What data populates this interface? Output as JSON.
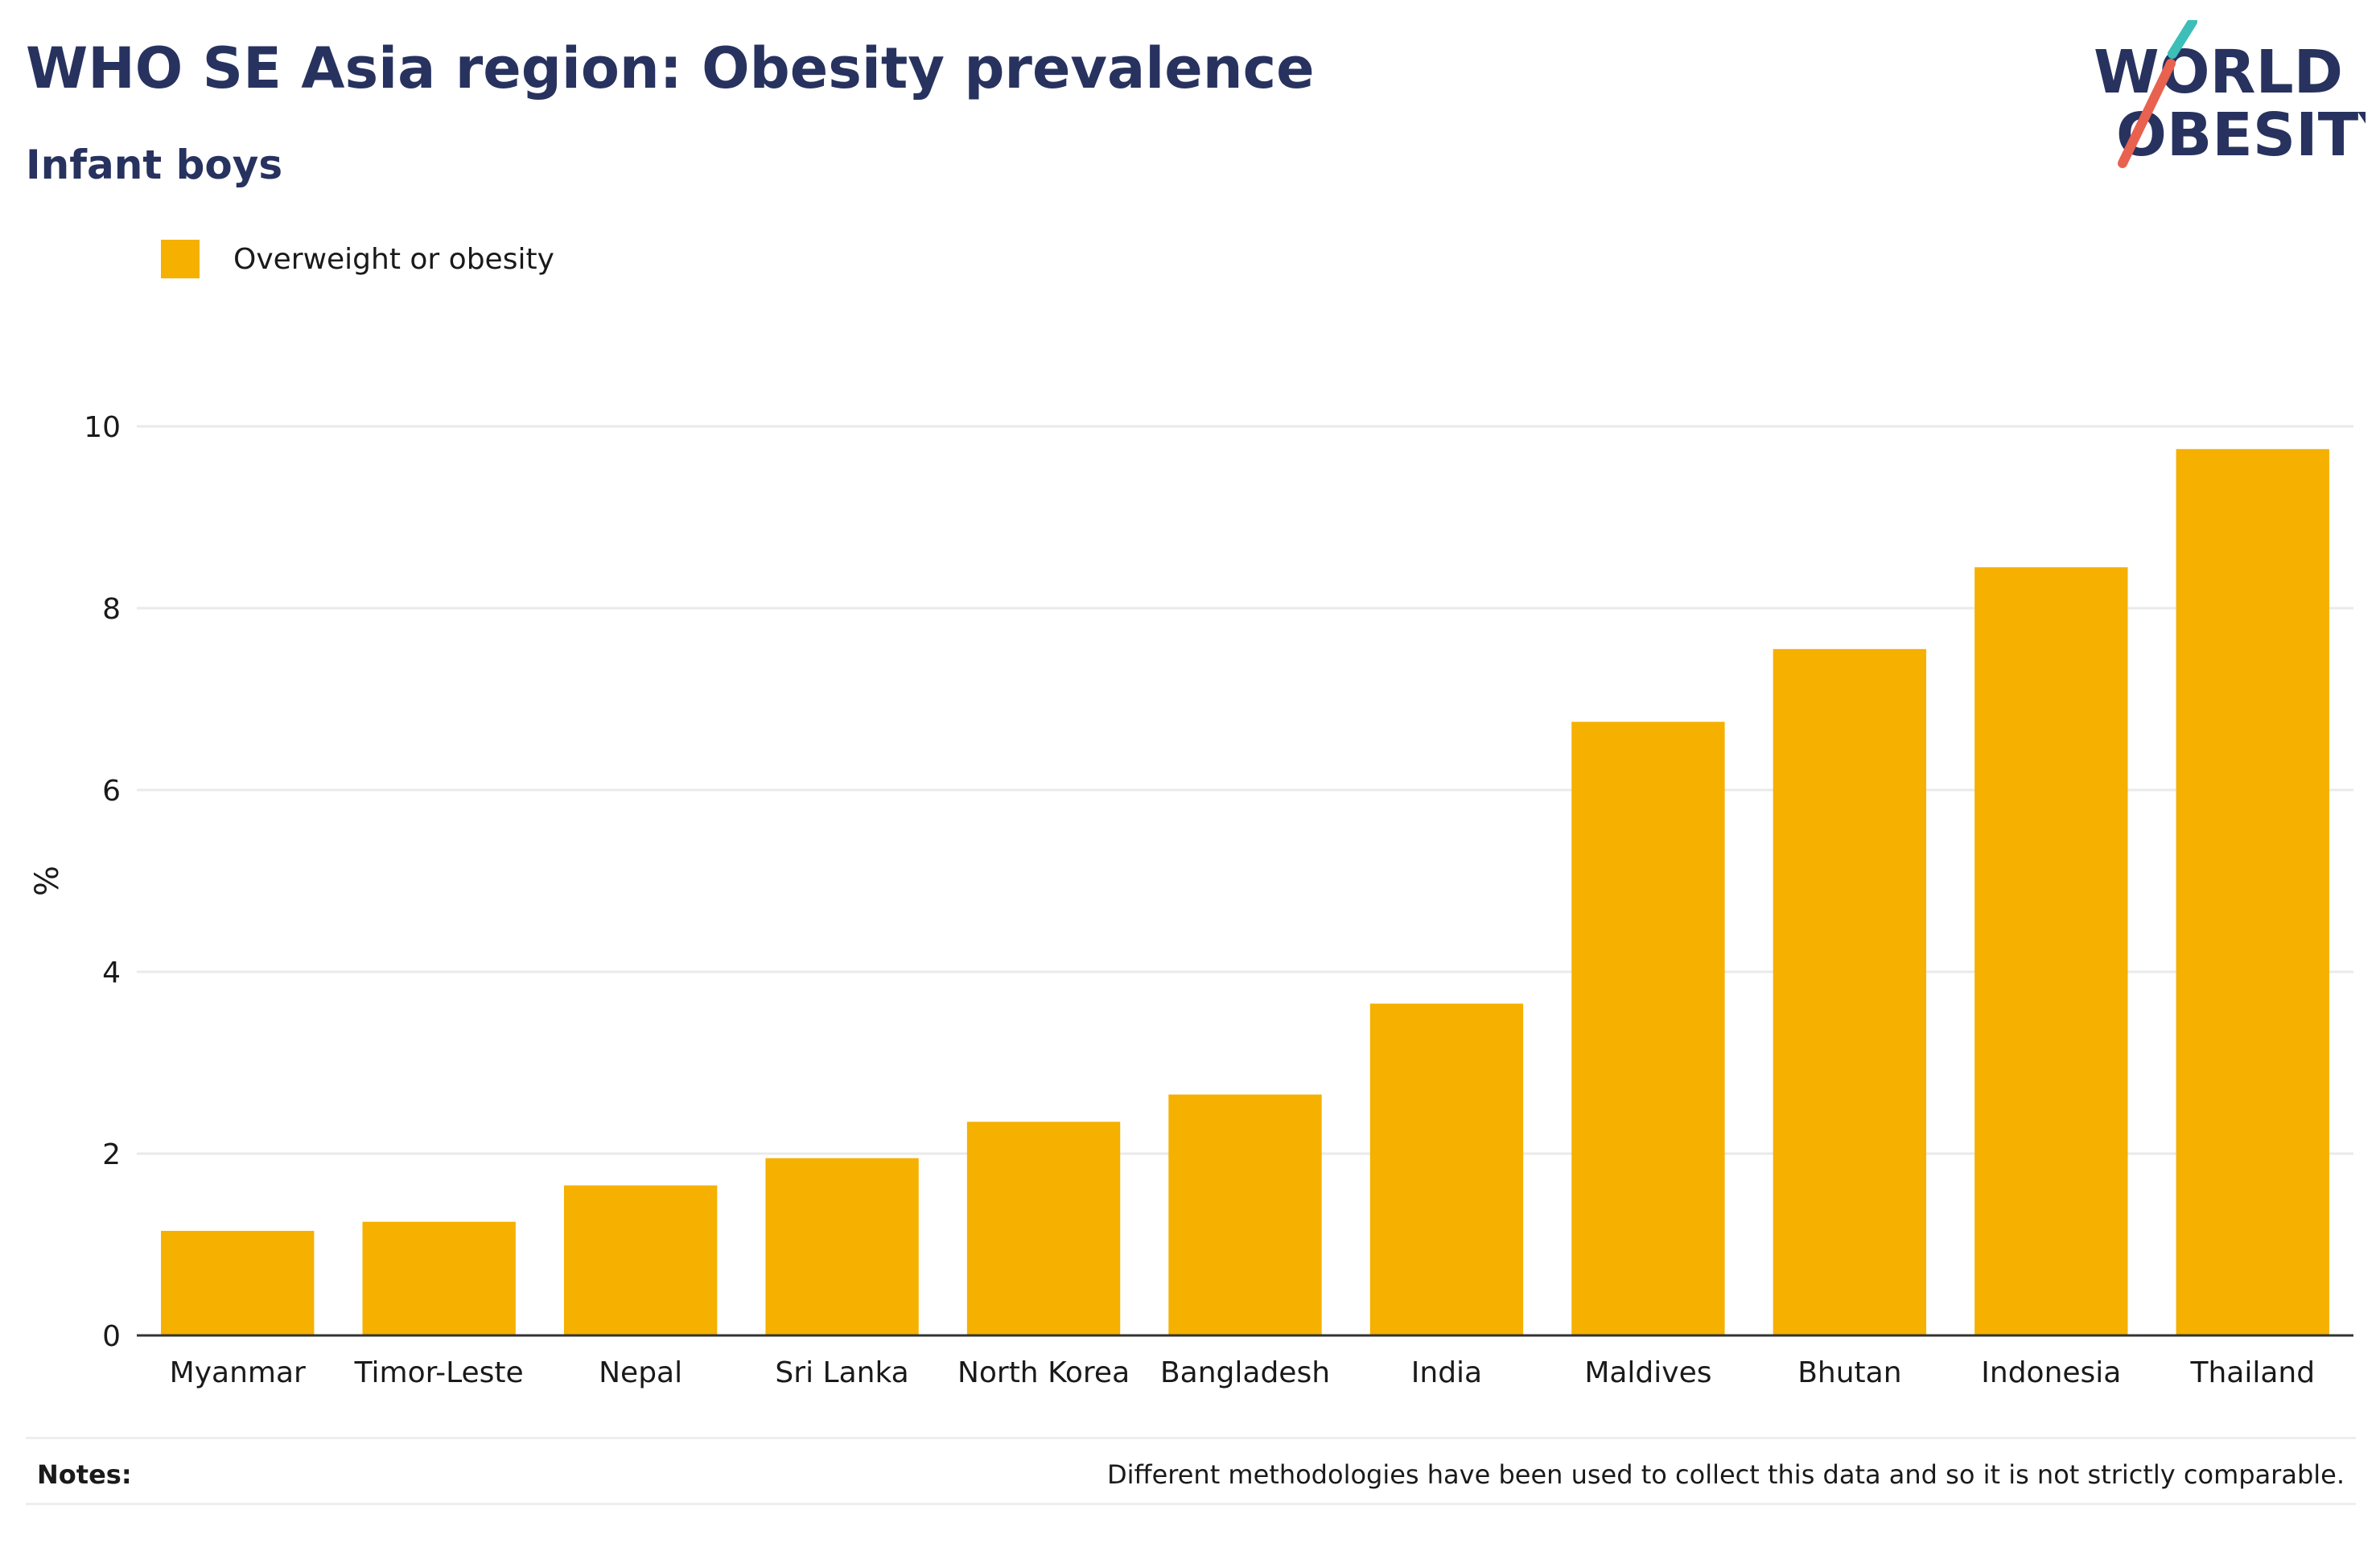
{
  "title": "WHO SE Asia region: Obesity prevalence",
  "subtitle": "Infant boys",
  "logo": {
    "line1": "WORLD",
    "line2": "OBESITY",
    "text_color": "#27325f",
    "accent_teal": "#3bbfb8",
    "accent_red": "#e8624f"
  },
  "notes": {
    "label": "Notes:",
    "text": "Different methodologies have been used to collect this data and so it is not strictly comparable."
  },
  "chart_data": {
    "type": "bar",
    "ylabel": "%",
    "ylim": [
      0,
      10
    ],
    "yticks": [
      0,
      2,
      4,
      6,
      8,
      10
    ],
    "grid": true,
    "legend_position": "top-left",
    "categories": [
      "Myanmar",
      "Timor-Leste",
      "Nepal",
      "Sri Lanka",
      "North Korea",
      "Bangladesh",
      "India",
      "Maldives",
      "Bhutan",
      "Indonesia",
      "Thailand"
    ],
    "series": [
      {
        "name": "Overweight or obesity",
        "color": "#f5b000",
        "values": [
          1.15,
          1.25,
          1.65,
          1.95,
          2.35,
          2.65,
          3.65,
          6.75,
          7.55,
          8.45,
          9.75
        ]
      }
    ]
  }
}
